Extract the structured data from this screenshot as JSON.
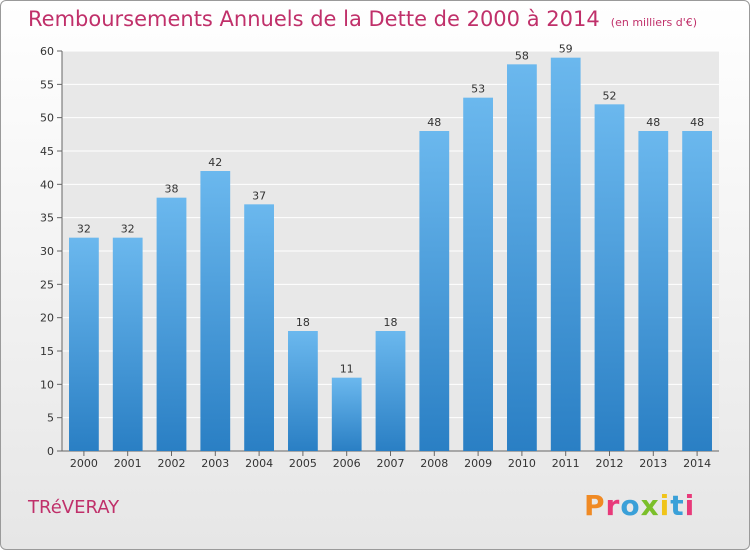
{
  "title": "Remboursements Annuels de la Dette de 2000 à 2014",
  "subtitle": "(en milliers d'€)",
  "place": "TRéVERAY",
  "logo": {
    "text": "Proxiti",
    "colors": [
      "#f08a24",
      "#e83a7a",
      "#3aa0d8",
      "#7bbf2a",
      "#f0c419",
      "#3aa0d8",
      "#e83a7a"
    ]
  },
  "colors": {
    "bar_light": "#6bb8ee",
    "bar_dark": "#2a7fc4",
    "title": "#c0306a"
  },
  "chart_data": {
    "type": "bar",
    "categories": [
      "2000",
      "2001",
      "2002",
      "2003",
      "2004",
      "2005",
      "2006",
      "2007",
      "2008",
      "2009",
      "2010",
      "2011",
      "2012",
      "2013",
      "2014"
    ],
    "values": [
      32,
      32,
      38,
      42,
      37,
      18,
      11,
      18,
      48,
      53,
      58,
      59,
      52,
      48,
      48
    ],
    "ylim": [
      0,
      60
    ],
    "yticks": [
      0,
      5,
      10,
      15,
      20,
      25,
      30,
      35,
      40,
      45,
      50,
      55,
      60
    ],
    "grid": true,
    "xlabel": "",
    "ylabel": ""
  }
}
